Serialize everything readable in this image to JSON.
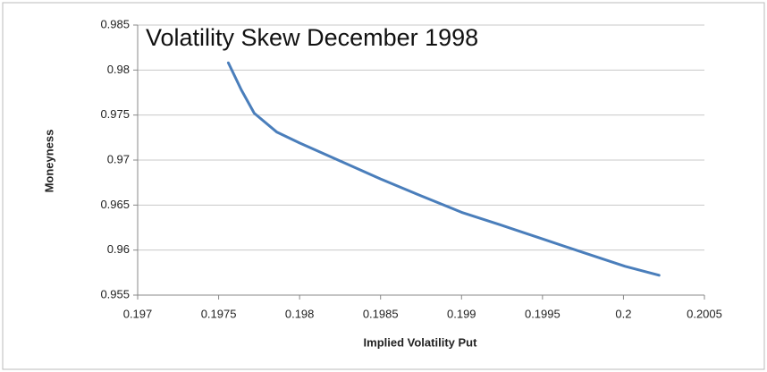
{
  "chart_data": {
    "type": "line",
    "title": "Volatility Skew December 1998",
    "xlabel": "Implied Volatility Put",
    "ylabel": "Moneyness",
    "series": [
      {
        "name": "Moneyness",
        "color": "#4a7ebb",
        "x": [
          0.19756,
          0.19764,
          0.19772,
          0.19786,
          0.198,
          0.19825,
          0.1985,
          0.19874,
          0.199,
          0.19924,
          0.19949,
          0.19974,
          0.20001,
          0.20022
        ],
        "values": [
          0.9808,
          0.9778,
          0.9752,
          0.9731,
          0.9719,
          0.9699,
          0.9679,
          0.9661,
          0.9642,
          0.9628,
          0.9613,
          0.9598,
          0.9582,
          0.9572
        ]
      }
    ],
    "xlim": [
      0.197,
      0.2005
    ],
    "xticks": [
      0.197,
      0.1975,
      0.198,
      0.1985,
      0.199,
      0.1995,
      0.2,
      0.2005
    ],
    "ylim": [
      0.955,
      0.985
    ],
    "yticks": [
      0.955,
      0.96,
      0.965,
      0.97,
      0.975,
      0.98,
      0.985
    ],
    "grid": true
  }
}
